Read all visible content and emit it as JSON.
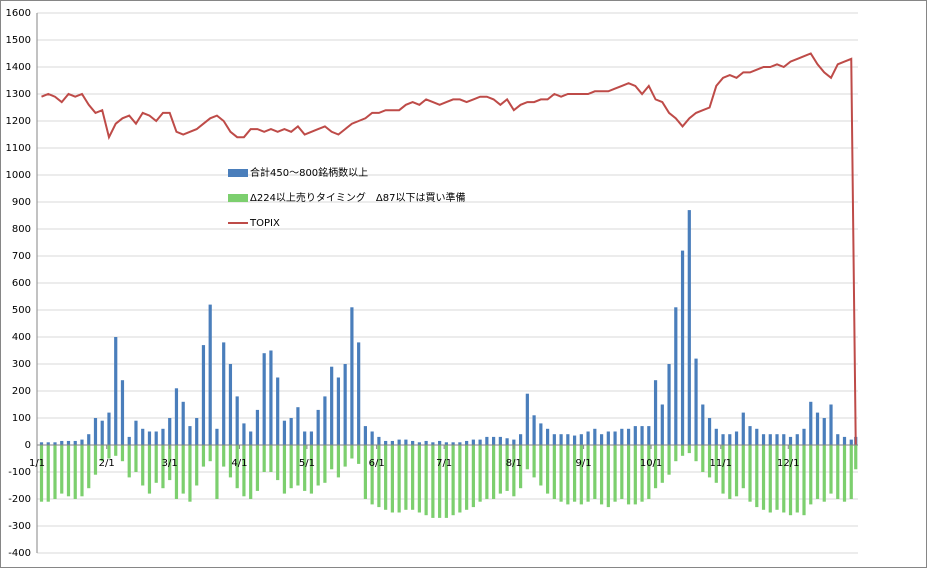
{
  "chart_data": {
    "type": "bar-line",
    "x": [
      2,
      5,
      8,
      11,
      14,
      17,
      20,
      23,
      26,
      29,
      32,
      35,
      38,
      41,
      44,
      47,
      50,
      53,
      56,
      59,
      62,
      65,
      68,
      71,
      74,
      77,
      80,
      83,
      86,
      89,
      92,
      95,
      98,
      101,
      104,
      107,
      110,
      113,
      116,
      119,
      122,
      125,
      128,
      131,
      134,
      137,
      140,
      143,
      146,
      149,
      152,
      155,
      158,
      161,
      164,
      167,
      170,
      173,
      176,
      179,
      182,
      185,
      188,
      191,
      194,
      197,
      200,
      203,
      206,
      209,
      212,
      215,
      218,
      221,
      224,
      227,
      230,
      233,
      236,
      239,
      242,
      245,
      248,
      251,
      254,
      257,
      260,
      263,
      266,
      269,
      272,
      275,
      278,
      281,
      284,
      287,
      290,
      293,
      296,
      299,
      302,
      305,
      308,
      311,
      314,
      317,
      320,
      323,
      326,
      329,
      332,
      335,
      338,
      341,
      344,
      347,
      350,
      353,
      356,
      359,
      362,
      364
    ],
    "xlim": [
      0,
      365
    ],
    "xticks": [
      {
        "value": 0,
        "label": "1/1"
      },
      {
        "value": 31,
        "label": "2/1"
      },
      {
        "value": 59,
        "label": "3/1"
      },
      {
        "value": 90,
        "label": "4/1"
      },
      {
        "value": 120,
        "label": "5/1"
      },
      {
        "value": 151,
        "label": "6/1"
      },
      {
        "value": 181,
        "label": "7/1"
      },
      {
        "value": 212,
        "label": "8/1"
      },
      {
        "value": 243,
        "label": "9/1"
      },
      {
        "value": 273,
        "label": "10/1"
      },
      {
        "value": 304,
        "label": "11/1"
      },
      {
        "value": 334,
        "label": "12/1"
      }
    ],
    "ylim": [
      -400,
      1600
    ],
    "yticks": [
      -400,
      -300,
      -200,
      -100,
      0,
      100,
      200,
      300,
      400,
      500,
      600,
      700,
      800,
      900,
      1000,
      1100,
      1200,
      1300,
      1400,
      1500,
      1600
    ],
    "grid": true,
    "legend": "center",
    "series": [
      {
        "name": "合計450～800銘柄数以上",
        "kind": "bar",
        "color": "#4a7ebb",
        "values": [
          10,
          10,
          10,
          15,
          15,
          15,
          20,
          40,
          100,
          90,
          120,
          400,
          240,
          30,
          90,
          60,
          50,
          50,
          60,
          100,
          210,
          160,
          70,
          100,
          370,
          520,
          60,
          380,
          300,
          180,
          80,
          50,
          130,
          340,
          350,
          250,
          90,
          100,
          140,
          50,
          50,
          130,
          180,
          290,
          250,
          300,
          510,
          380,
          70,
          50,
          30,
          15,
          15,
          20,
          20,
          15,
          10,
          15,
          10,
          15,
          10,
          10,
          10,
          15,
          20,
          20,
          30,
          30,
          30,
          25,
          20,
          40,
          190,
          110,
          80,
          60,
          40,
          40,
          40,
          35,
          40,
          50,
          60,
          40,
          50,
          50,
          60,
          60,
          70,
          70,
          70,
          240,
          150,
          300,
          510,
          720,
          870,
          320,
          150,
          100,
          60,
          40,
          40,
          50,
          120,
          70,
          60,
          40,
          40,
          40,
          40,
          30,
          40,
          60,
          160,
          120,
          100,
          150,
          40,
          30,
          20,
          30
        ]
      },
      {
        "name": "Δ224以上売りタイミング　Δ87以下は買い準備",
        "kind": "bar",
        "color": "#7ccf6e",
        "values": [
          -210,
          -210,
          -200,
          -180,
          -190,
          -200,
          -190,
          -160,
          -110,
          -60,
          -50,
          -40,
          -60,
          -120,
          -100,
          -150,
          -180,
          -140,
          -160,
          -130,
          -200,
          -180,
          -210,
          -150,
          -80,
          -60,
          -200,
          -80,
          -120,
          -160,
          -190,
          -200,
          -170,
          -100,
          -100,
          -130,
          -180,
          -160,
          -150,
          -170,
          -180,
          -150,
          -140,
          -90,
          -120,
          -80,
          -50,
          -70,
          -200,
          -220,
          -230,
          -240,
          -250,
          -250,
          -240,
          -240,
          -250,
          -260,
          -270,
          -270,
          -270,
          -260,
          -250,
          -240,
          -230,
          -210,
          -200,
          -200,
          -180,
          -170,
          -190,
          -160,
          -90,
          -120,
          -150,
          -180,
          -200,
          -210,
          -220,
          -210,
          -220,
          -210,
          -200,
          -220,
          -230,
          -210,
          -200,
          -220,
          -220,
          -210,
          -200,
          -160,
          -140,
          -110,
          -60,
          -40,
          -30,
          -60,
          -100,
          -120,
          -140,
          -180,
          -200,
          -190,
          -160,
          -210,
          -230,
          -240,
          -250,
          -240,
          -250,
          -260,
          -250,
          -260,
          -220,
          -200,
          -210,
          -180,
          -200,
          -210,
          -200,
          -90
        ]
      },
      {
        "name": "TOPIX",
        "kind": "line",
        "color": "#be4b48",
        "values": [
          1290,
          1300,
          1290,
          1270,
          1300,
          1290,
          1300,
          1260,
          1230,
          1240,
          1140,
          1190,
          1210,
          1220,
          1190,
          1230,
          1220,
          1200,
          1230,
          1230,
          1160,
          1150,
          1160,
          1170,
          1190,
          1210,
          1220,
          1200,
          1160,
          1140,
          1140,
          1170,
          1170,
          1160,
          1170,
          1160,
          1170,
          1160,
          1180,
          1150,
          1160,
          1170,
          1180,
          1160,
          1150,
          1170,
          1190,
          1200,
          1210,
          1230,
          1230,
          1240,
          1240,
          1240,
          1260,
          1270,
          1260,
          1280,
          1270,
          1260,
          1270,
          1280,
          1280,
          1270,
          1280,
          1290,
          1290,
          1280,
          1260,
          1280,
          1240,
          1260,
          1270,
          1270,
          1280,
          1280,
          1300,
          1290,
          1300,
          1300,
          1300,
          1300,
          1310,
          1310,
          1310,
          1320,
          1330,
          1340,
          1330,
          1300,
          1330,
          1280,
          1270,
          1230,
          1210,
          1180,
          1210,
          1230,
          1240,
          1250,
          1330,
          1360,
          1370,
          1360,
          1380,
          1380,
          1390,
          1400,
          1400,
          1410,
          1400,
          1420,
          1430,
          1440,
          1450,
          1410,
          1380,
          1360,
          1410,
          1420,
          1430,
          0
        ]
      }
    ]
  }
}
